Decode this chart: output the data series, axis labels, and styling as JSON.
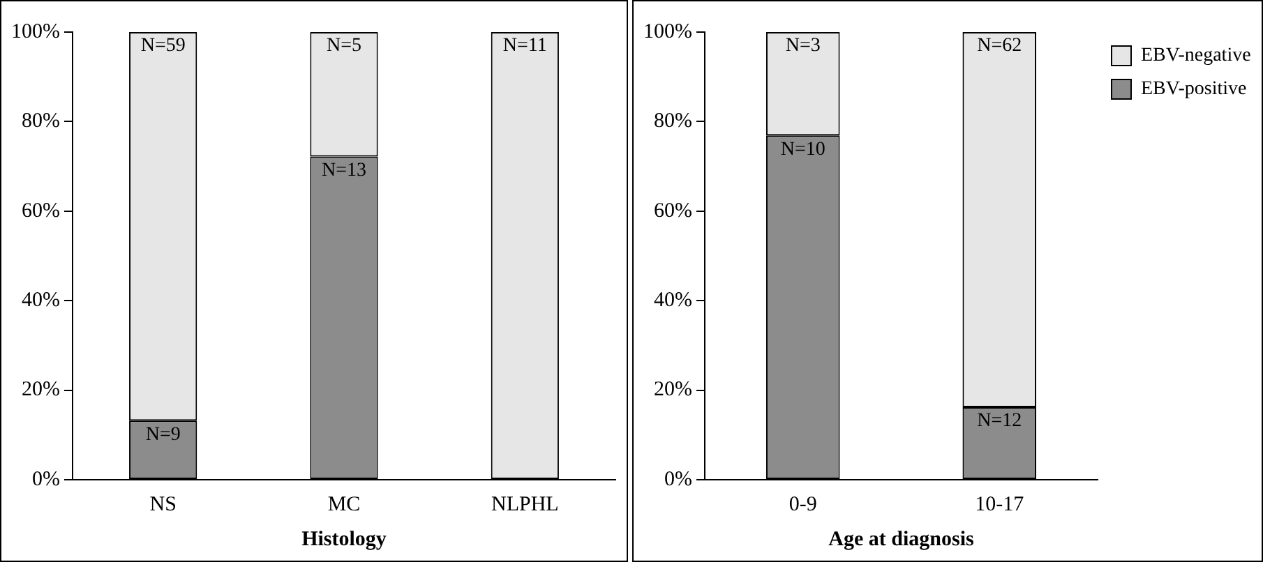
{
  "chart_data": [
    {
      "type": "bar",
      "stacked": true,
      "categories": [
        "NS",
        "MC",
        "NLPHL"
      ],
      "xlabel": "Histology",
      "ylim": [
        0,
        100
      ],
      "yticks": [
        {
          "value": 0,
          "label": "0%"
        },
        {
          "value": 20,
          "label": "20%"
        },
        {
          "value": 40,
          "label": "40%"
        },
        {
          "value": 60,
          "label": "60%"
        },
        {
          "value": 80,
          "label": "80%"
        },
        {
          "value": 100,
          "label": "100%"
        }
      ],
      "grid": false,
      "legend": false,
      "series": [
        {
          "color": "#8c8c8c",
          "values": [
            13.2,
            72.2,
            0
          ]
        },
        {
          "color": "#e6e6e6",
          "values": [
            86.8,
            27.8,
            100
          ]
        }
      ],
      "annotations": [
        {
          "text": "N=9",
          "x": "NS",
          "y": 13.2
        },
        {
          "text": "N=59",
          "x": "NS",
          "y": 100
        },
        {
          "text": "N=13",
          "x": "MC",
          "y": 72.2
        },
        {
          "text": "N=5",
          "x": "MC",
          "y": 100
        },
        {
          "text": "N=11",
          "x": "NLPHL",
          "y": 100
        }
      ]
    },
    {
      "type": "bar",
      "stacked": true,
      "categories": [
        "0-9",
        "10-17"
      ],
      "xlabel": "Age at diagnosis",
      "ylim": [
        0,
        100
      ],
      "yticks": [
        {
          "value": 0,
          "label": "0%"
        },
        {
          "value": 20,
          "label": "20%"
        },
        {
          "value": 40,
          "label": "40%"
        },
        {
          "value": 60,
          "label": "60%"
        },
        {
          "value": 80,
          "label": "80%"
        },
        {
          "value": 100,
          "label": "100%"
        }
      ],
      "grid": false,
      "legend": "top right",
      "series": [
        {
          "name": "EBV-positive",
          "color": "#8c8c8c",
          "values": [
            76.9,
            16.2
          ]
        },
        {
          "name": "EBV-negative",
          "color": "#e6e6e6",
          "values": [
            23.1,
            83.8
          ]
        }
      ],
      "annotations": [
        {
          "text": "N=10",
          "x": "0-9",
          "y": 76.9
        },
        {
          "text": "N=3",
          "x": "0-9",
          "y": 100
        },
        {
          "text": "N=12",
          "x": "10-17",
          "y": 16.2
        },
        {
          "text": "N=62",
          "x": "10-17",
          "y": 100
        }
      ]
    }
  ]
}
